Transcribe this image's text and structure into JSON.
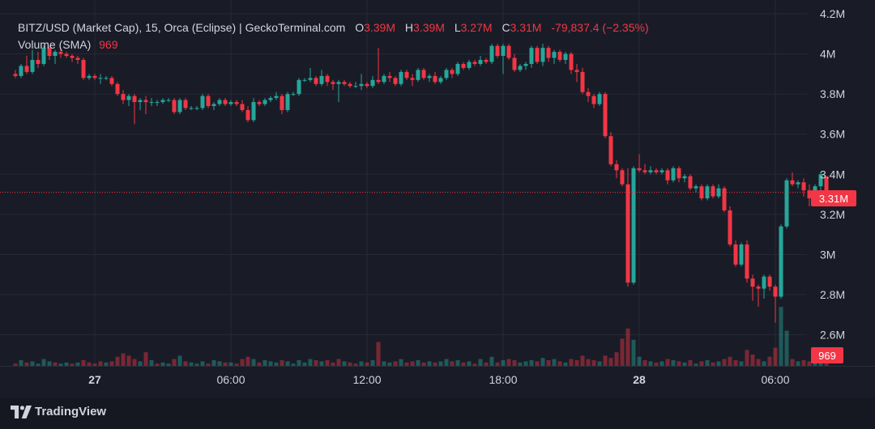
{
  "legend": {
    "symbol": "BITZ/USD (Market Cap), 15, Orca (Eclipse) | GeckoTerminal.com",
    "open_label": "O",
    "open_value": "3.39M",
    "high_label": "H",
    "high_value": "3.39M",
    "low_label": "L",
    "low_value": "3.27M",
    "close_label": "C",
    "close_value": "3.31M",
    "change": "-79,837.4 (−2.35%)",
    "volume_label": "Volume (SMA)",
    "volume_value": "969"
  },
  "price_badge": "3.31M",
  "volume_badge": "969",
  "brand": {
    "name": "TradingView",
    "icon": "tradingview-logo-icon"
  },
  "colors": {
    "up": "#26a69a",
    "down": "#f23645",
    "background": "#191c27",
    "grid": "#262a36"
  },
  "chart_data": {
    "type": "candlestick",
    "ylim": [
      2.55,
      4.2
    ],
    "y_ticks": [
      "4.2M",
      "4M",
      "3.8M",
      "3.6M",
      "3.4M",
      "3.2M",
      "3M",
      "2.8M",
      "2.6M"
    ],
    "y_tick_values": [
      4.2,
      4.0,
      3.8,
      3.6,
      3.4,
      3.2,
      3.0,
      2.8,
      2.6
    ],
    "x_ticks": [
      "27",
      "06:00",
      "12:00",
      "18:00",
      "28",
      "06:00"
    ],
    "x_tick_bold": [
      true,
      false,
      false,
      false,
      true,
      false
    ],
    "x_tick_index": [
      14,
      38,
      62,
      86,
      110,
      134
    ],
    "last_price": 3.31,
    "price_line": "dotted",
    "volume_series": "Volume (SMA)",
    "candles": [
      [
        3.9,
        3.92,
        3.88,
        3.89
      ],
      [
        3.89,
        3.95,
        3.88,
        3.94
      ],
      [
        3.94,
        3.99,
        3.9,
        3.91
      ],
      [
        3.91,
        4.02,
        3.9,
        3.97
      ],
      [
        3.97,
        4.01,
        3.93,
        3.95
      ],
      [
        3.95,
        4.04,
        3.94,
        4.03
      ],
      [
        4.03,
        4.04,
        3.97,
        3.99
      ],
      [
        3.99,
        4.02,
        3.95,
        4.01
      ],
      [
        4.01,
        4.03,
        3.98,
        4.0
      ],
      [
        4.0,
        4.01,
        3.98,
        3.99
      ],
      [
        3.99,
        4.0,
        3.96,
        3.98
      ],
      [
        3.98,
        3.99,
        3.95,
        3.97
      ],
      [
        3.97,
        3.98,
        3.87,
        3.88
      ],
      [
        3.88,
        3.9,
        3.87,
        3.89
      ],
      [
        3.89,
        3.9,
        3.87,
        3.88
      ],
      [
        3.88,
        3.9,
        3.85,
        3.88
      ],
      [
        3.88,
        3.89,
        3.87,
        3.88
      ],
      [
        3.88,
        3.89,
        3.84,
        3.85
      ],
      [
        3.85,
        3.86,
        3.79,
        3.8
      ],
      [
        3.8,
        3.82,
        3.75,
        3.77
      ],
      [
        3.77,
        3.8,
        3.74,
        3.79
      ],
      [
        3.79,
        3.8,
        3.65,
        3.76
      ],
      [
        3.76,
        3.78,
        3.72,
        3.77
      ],
      [
        3.77,
        3.79,
        3.7,
        3.76
      ],
      [
        3.76,
        3.78,
        3.74,
        3.76
      ],
      [
        3.76,
        3.77,
        3.74,
        3.76
      ],
      [
        3.76,
        3.78,
        3.75,
        3.77
      ],
      [
        3.77,
        3.78,
        3.76,
        3.77
      ],
      [
        3.77,
        3.78,
        3.7,
        3.71
      ],
      [
        3.71,
        3.78,
        3.7,
        3.77
      ],
      [
        3.77,
        3.78,
        3.72,
        3.73
      ],
      [
        3.73,
        3.74,
        3.72,
        3.73
      ],
      [
        3.73,
        3.74,
        3.72,
        3.73
      ],
      [
        3.73,
        3.8,
        3.72,
        3.79
      ],
      [
        3.79,
        3.8,
        3.73,
        3.74
      ],
      [
        3.74,
        3.76,
        3.72,
        3.75
      ],
      [
        3.75,
        3.78,
        3.74,
        3.77
      ],
      [
        3.77,
        3.78,
        3.74,
        3.75
      ],
      [
        3.75,
        3.77,
        3.74,
        3.76
      ],
      [
        3.76,
        3.77,
        3.74,
        3.75
      ],
      [
        3.75,
        3.77,
        3.71,
        3.72
      ],
      [
        3.72,
        3.74,
        3.66,
        3.67
      ],
      [
        3.67,
        3.78,
        3.66,
        3.76
      ],
      [
        3.76,
        3.77,
        3.74,
        3.75
      ],
      [
        3.75,
        3.78,
        3.74,
        3.77
      ],
      [
        3.77,
        3.79,
        3.76,
        3.78
      ],
      [
        3.78,
        3.81,
        3.77,
        3.79
      ],
      [
        3.79,
        3.8,
        3.7,
        3.72
      ],
      [
        3.72,
        3.81,
        3.71,
        3.8
      ],
      [
        3.8,
        3.81,
        3.79,
        3.8
      ],
      [
        3.8,
        3.88,
        3.79,
        3.87
      ],
      [
        3.87,
        3.88,
        3.86,
        3.87
      ],
      [
        3.87,
        3.93,
        3.86,
        3.88
      ],
      [
        3.88,
        3.89,
        3.84,
        3.85
      ],
      [
        3.85,
        3.92,
        3.84,
        3.89
      ],
      [
        3.89,
        3.9,
        3.84,
        3.86
      ],
      [
        3.86,
        3.87,
        3.82,
        3.85
      ],
      [
        3.85,
        3.87,
        3.76,
        3.86
      ],
      [
        3.86,
        3.87,
        3.84,
        3.85
      ],
      [
        3.85,
        3.86,
        3.83,
        3.84
      ],
      [
        3.84,
        3.86,
        3.83,
        3.84
      ],
      [
        3.84,
        3.9,
        3.82,
        3.85
      ],
      [
        3.85,
        3.86,
        3.83,
        3.84
      ],
      [
        3.84,
        3.89,
        3.83,
        3.87
      ],
      [
        3.87,
        4.03,
        3.85,
        3.86
      ],
      [
        3.86,
        3.9,
        3.85,
        3.89
      ],
      [
        3.89,
        3.91,
        3.86,
        3.88
      ],
      [
        3.88,
        3.89,
        3.84,
        3.85
      ],
      [
        3.85,
        3.92,
        3.84,
        3.91
      ],
      [
        3.91,
        3.92,
        3.87,
        3.88
      ],
      [
        3.88,
        3.9,
        3.84,
        3.87
      ],
      [
        3.87,
        3.93,
        3.86,
        3.92
      ],
      [
        3.92,
        3.93,
        3.87,
        3.88
      ],
      [
        3.88,
        3.9,
        3.86,
        3.89
      ],
      [
        3.89,
        3.91,
        3.85,
        3.86
      ],
      [
        3.86,
        3.89,
        3.85,
        3.88
      ],
      [
        3.88,
        3.93,
        3.87,
        3.92
      ],
      [
        3.92,
        3.93,
        3.88,
        3.9
      ],
      [
        3.9,
        3.96,
        3.89,
        3.95
      ],
      [
        3.95,
        3.96,
        3.92,
        3.93
      ],
      [
        3.93,
        3.97,
        3.92,
        3.96
      ],
      [
        3.96,
        3.97,
        3.94,
        3.95
      ],
      [
        3.95,
        3.99,
        3.94,
        3.97
      ],
      [
        3.97,
        3.98,
        3.95,
        3.96
      ],
      [
        3.96,
        4.05,
        3.95,
        4.04
      ],
      [
        4.04,
        4.05,
        3.98,
        3.99
      ],
      [
        3.99,
        4.05,
        3.9,
        4.04
      ],
      [
        4.04,
        4.05,
        3.97,
        3.98
      ],
      [
        3.98,
        4.0,
        3.91,
        3.92
      ],
      [
        3.92,
        3.95,
        3.91,
        3.94
      ],
      [
        3.94,
        3.96,
        3.92,
        3.95
      ],
      [
        3.95,
        4.04,
        3.93,
        4.03
      ],
      [
        4.03,
        4.04,
        3.95,
        3.96
      ],
      [
        3.96,
        4.05,
        3.94,
        4.03
      ],
      [
        4.03,
        4.04,
        3.96,
        3.98
      ],
      [
        3.98,
        4.02,
        3.95,
        4.01
      ],
      [
        4.01,
        4.02,
        3.96,
        3.97
      ],
      [
        3.97,
        4.01,
        3.95,
        4.0
      ],
      [
        4.0,
        4.01,
        3.9,
        3.92
      ],
      [
        3.92,
        3.95,
        3.86,
        3.91
      ],
      [
        3.91,
        3.93,
        3.8,
        3.81
      ],
      [
        3.81,
        3.83,
        3.76,
        3.79
      ],
      [
        3.79,
        3.8,
        3.73,
        3.75
      ],
      [
        3.75,
        3.81,
        3.74,
        3.8
      ],
      [
        3.8,
        3.81,
        3.58,
        3.59
      ],
      [
        3.59,
        3.61,
        3.44,
        3.45
      ],
      [
        3.45,
        3.47,
        3.38,
        3.42
      ],
      [
        3.42,
        3.43,
        3.34,
        3.35
      ],
      [
        3.35,
        3.43,
        2.84,
        2.86
      ],
      [
        2.86,
        3.44,
        2.85,
        3.43
      ],
      [
        3.43,
        3.5,
        3.41,
        3.42
      ],
      [
        3.42,
        3.45,
        3.4,
        3.41
      ],
      [
        3.41,
        3.44,
        3.4,
        3.42
      ],
      [
        3.42,
        3.43,
        3.4,
        3.41
      ],
      [
        3.41,
        3.43,
        3.4,
        3.42
      ],
      [
        3.42,
        3.43,
        3.35,
        3.37
      ],
      [
        3.37,
        3.44,
        3.36,
        3.43
      ],
      [
        3.43,
        3.44,
        3.36,
        3.38
      ],
      [
        3.38,
        3.4,
        3.36,
        3.39
      ],
      [
        3.39,
        3.4,
        3.32,
        3.33
      ],
      [
        3.33,
        3.35,
        3.31,
        3.34
      ],
      [
        3.34,
        3.35,
        3.27,
        3.28
      ],
      [
        3.28,
        3.35,
        3.27,
        3.34
      ],
      [
        3.34,
        3.35,
        3.28,
        3.29
      ],
      [
        3.29,
        3.35,
        3.28,
        3.33
      ],
      [
        3.33,
        3.34,
        3.21,
        3.22
      ],
      [
        3.22,
        3.24,
        3.04,
        3.05
      ],
      [
        3.05,
        3.07,
        2.94,
        2.95
      ],
      [
        2.95,
        3.06,
        2.94,
        3.05
      ],
      [
        3.05,
        3.07,
        2.86,
        2.88
      ],
      [
        2.88,
        2.9,
        2.77,
        2.84
      ],
      [
        2.84,
        2.85,
        2.74,
        2.83
      ],
      [
        2.83,
        2.9,
        2.78,
        2.89
      ],
      [
        2.89,
        2.9,
        2.82,
        2.84
      ],
      [
        2.84,
        2.85,
        2.66,
        2.79
      ],
      [
        2.79,
        3.15,
        2.78,
        3.14
      ],
      [
        3.14,
        3.38,
        3.13,
        3.37
      ],
      [
        3.37,
        3.41,
        3.34,
        3.35
      ],
      [
        3.35,
        3.37,
        3.33,
        3.36
      ],
      [
        3.36,
        3.38,
        3.29,
        3.32
      ],
      [
        3.32,
        3.35,
        3.24,
        3.28
      ],
      [
        3.28,
        3.35,
        3.25,
        3.34
      ],
      [
        3.34,
        3.41,
        3.31,
        3.4
      ],
      [
        3.39,
        3.39,
        3.27,
        3.31
      ]
    ],
    "volumes": [
      [
        0.2,
        "d"
      ],
      [
        0.5,
        "u"
      ],
      [
        0.3,
        "d"
      ],
      [
        0.4,
        "u"
      ],
      [
        0.2,
        "u"
      ],
      [
        0.6,
        "u"
      ],
      [
        0.4,
        "u"
      ],
      [
        0.3,
        "d"
      ],
      [
        0.2,
        "u"
      ],
      [
        0.3,
        "u"
      ],
      [
        0.2,
        "d"
      ],
      [
        0.3,
        "u"
      ],
      [
        0.5,
        "d"
      ],
      [
        0.3,
        "d"
      ],
      [
        0.2,
        "d"
      ],
      [
        0.4,
        "d"
      ],
      [
        0.3,
        "u"
      ],
      [
        0.4,
        "d"
      ],
      [
        0.8,
        "d"
      ],
      [
        1.1,
        "d"
      ],
      [
        0.9,
        "d"
      ],
      [
        0.6,
        "d"
      ],
      [
        0.4,
        "u"
      ],
      [
        1.2,
        "d"
      ],
      [
        0.5,
        "u"
      ],
      [
        0.2,
        "d"
      ],
      [
        0.3,
        "u"
      ],
      [
        0.2,
        "u"
      ],
      [
        0.6,
        "d"
      ],
      [
        0.9,
        "u"
      ],
      [
        0.4,
        "d"
      ],
      [
        0.3,
        "u"
      ],
      [
        0.2,
        "u"
      ],
      [
        0.4,
        "u"
      ],
      [
        0.2,
        "d"
      ],
      [
        0.5,
        "u"
      ],
      [
        0.4,
        "u"
      ],
      [
        0.3,
        "d"
      ],
      [
        0.3,
        "u"
      ],
      [
        0.2,
        "d"
      ],
      [
        0.6,
        "d"
      ],
      [
        0.8,
        "d"
      ],
      [
        0.6,
        "u"
      ],
      [
        0.3,
        "d"
      ],
      [
        0.5,
        "u"
      ],
      [
        0.4,
        "u"
      ],
      [
        0.3,
        "u"
      ],
      [
        0.5,
        "d"
      ],
      [
        0.4,
        "u"
      ],
      [
        0.2,
        "u"
      ],
      [
        0.5,
        "u"
      ],
      [
        0.3,
        "u"
      ],
      [
        0.6,
        "u"
      ],
      [
        0.5,
        "d"
      ],
      [
        0.4,
        "u"
      ],
      [
        0.5,
        "d"
      ],
      [
        0.3,
        "d"
      ],
      [
        0.6,
        "d"
      ],
      [
        0.4,
        "u"
      ],
      [
        0.3,
        "d"
      ],
      [
        0.2,
        "d"
      ],
      [
        0.4,
        "u"
      ],
      [
        0.3,
        "d"
      ],
      [
        0.5,
        "u"
      ],
      [
        2.1,
        "d"
      ],
      [
        0.4,
        "u"
      ],
      [
        0.3,
        "u"
      ],
      [
        0.4,
        "d"
      ],
      [
        0.6,
        "u"
      ],
      [
        0.3,
        "d"
      ],
      [
        0.4,
        "d"
      ],
      [
        0.5,
        "u"
      ],
      [
        0.3,
        "d"
      ],
      [
        0.4,
        "u"
      ],
      [
        0.3,
        "d"
      ],
      [
        0.4,
        "u"
      ],
      [
        0.6,
        "u"
      ],
      [
        0.4,
        "d"
      ],
      [
        0.5,
        "u"
      ],
      [
        0.3,
        "d"
      ],
      [
        0.4,
        "u"
      ],
      [
        0.2,
        "d"
      ],
      [
        0.6,
        "u"
      ],
      [
        0.3,
        "d"
      ],
      [
        0.8,
        "u"
      ],
      [
        0.3,
        "d"
      ],
      [
        0.5,
        "u"
      ],
      [
        0.6,
        "d"
      ],
      [
        0.5,
        "d"
      ],
      [
        0.3,
        "u"
      ],
      [
        0.4,
        "u"
      ],
      [
        0.5,
        "u"
      ],
      [
        0.4,
        "d"
      ],
      [
        0.7,
        "u"
      ],
      [
        0.5,
        "d"
      ],
      [
        0.6,
        "u"
      ],
      [
        0.4,
        "d"
      ],
      [
        0.3,
        "u"
      ],
      [
        0.6,
        "d"
      ],
      [
        0.5,
        "d"
      ],
      [
        0.9,
        "d"
      ],
      [
        0.6,
        "d"
      ],
      [
        0.5,
        "d"
      ],
      [
        0.4,
        "u"
      ],
      [
        0.9,
        "d"
      ],
      [
        0.7,
        "d"
      ],
      [
        1.2,
        "d"
      ],
      [
        2.4,
        "d"
      ],
      [
        3.3,
        "d"
      ],
      [
        2.3,
        "u"
      ],
      [
        0.8,
        "u"
      ],
      [
        0.5,
        "d"
      ],
      [
        0.4,
        "u"
      ],
      [
        0.3,
        "d"
      ],
      [
        0.4,
        "u"
      ],
      [
        0.6,
        "d"
      ],
      [
        0.5,
        "u"
      ],
      [
        0.4,
        "d"
      ],
      [
        0.3,
        "u"
      ],
      [
        0.5,
        "d"
      ],
      [
        0.2,
        "u"
      ],
      [
        0.4,
        "d"
      ],
      [
        0.5,
        "u"
      ],
      [
        0.3,
        "d"
      ],
      [
        0.4,
        "u"
      ],
      [
        0.6,
        "d"
      ],
      [
        0.8,
        "d"
      ],
      [
        0.5,
        "d"
      ],
      [
        0.4,
        "u"
      ],
      [
        1.4,
        "d"
      ],
      [
        1.0,
        "d"
      ],
      [
        0.6,
        "d"
      ],
      [
        0.4,
        "u"
      ],
      [
        0.8,
        "d"
      ],
      [
        1.6,
        "d"
      ],
      [
        5.2,
        "u"
      ],
      [
        3.1,
        "u"
      ],
      [
        0.6,
        "d"
      ],
      [
        0.4,
        "u"
      ],
      [
        0.5,
        "d"
      ],
      [
        0.4,
        "d"
      ],
      [
        0.5,
        "u"
      ],
      [
        0.4,
        "u"
      ],
      [
        0.7,
        "d"
      ]
    ]
  }
}
